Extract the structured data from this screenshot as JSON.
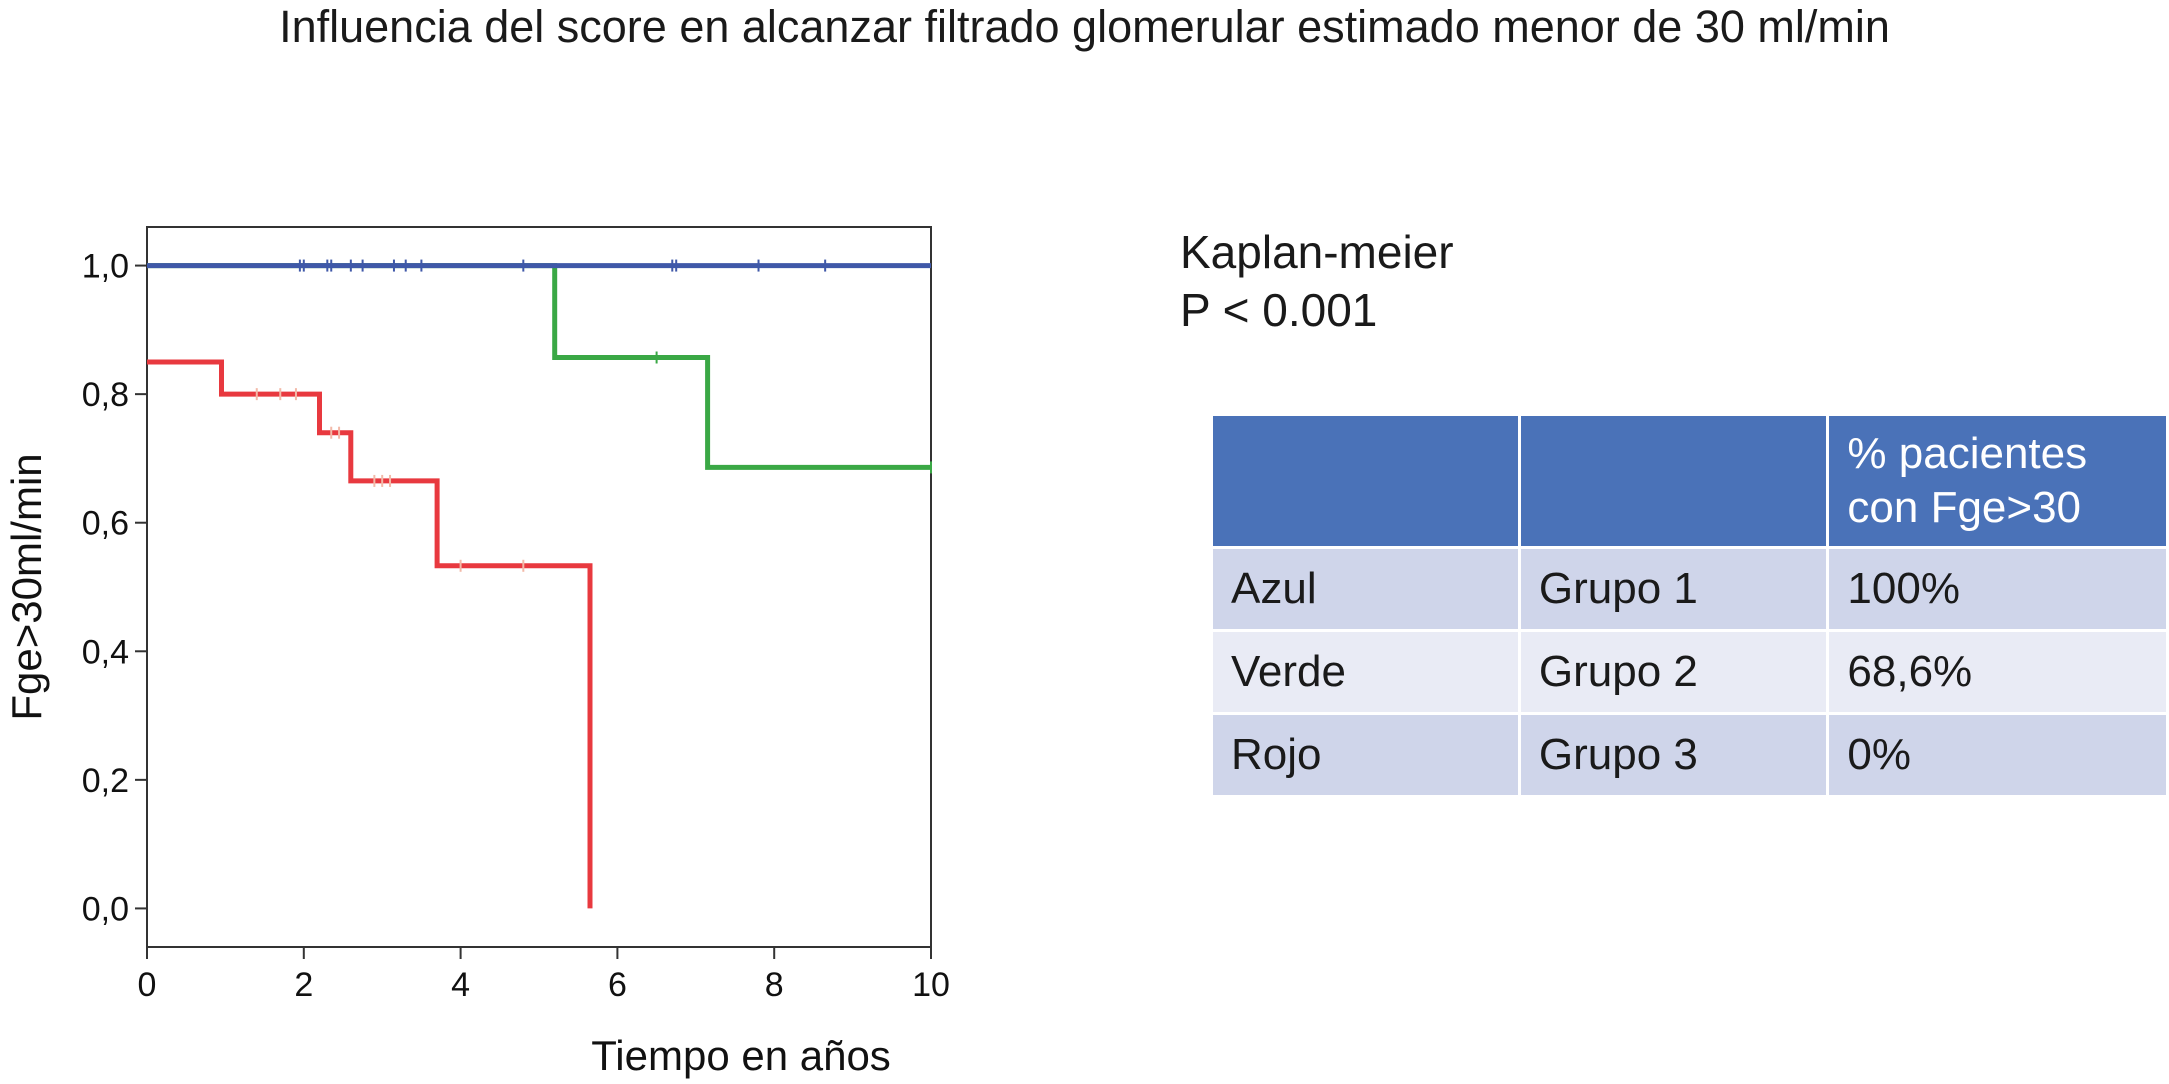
{
  "title": "Influencia del score en alcanzar filtrado glomerular estimado menor de 30 ml/min",
  "stats": {
    "method": "Kaplan-meier",
    "p_value": "P < 0.001"
  },
  "table": {
    "headers": [
      "",
      "",
      "% pacientes con Fge>30"
    ],
    "rows": [
      {
        "color": "Azul",
        "group": "Grupo 1",
        "pct": "100%"
      },
      {
        "color": "Verde",
        "group": "Grupo 2",
        "pct": "68,6%"
      },
      {
        "color": "Rojo",
        "group": "Grupo 3",
        "pct": "0%"
      }
    ]
  },
  "chart_data": {
    "type": "line",
    "subtype": "kaplan-meier step",
    "xlabel": "Tiempo en años",
    "ylabel": "Fge>30ml/min",
    "xlim": [
      0,
      10
    ],
    "ylim": [
      -0.06,
      1.06
    ],
    "xticks": [
      0,
      2,
      4,
      6,
      8,
      10
    ],
    "xtick_labels": [
      "0",
      "2",
      "4",
      "6",
      "8",
      "10"
    ],
    "yticks": [
      0,
      0.2,
      0.4,
      0.6,
      0.8,
      1.0
    ],
    "ytick_labels": [
      "0,0",
      "0,2",
      "0,4",
      "0,6",
      "0,8",
      "1,0"
    ],
    "grid": false,
    "series": [
      {
        "key": "azul",
        "color": "#3f58a8",
        "points": [
          [
            0,
            1.0
          ],
          [
            10,
            1.0
          ]
        ],
        "censored": [
          1.95,
          2.0,
          2.3,
          2.35,
          2.6,
          2.75,
          3.15,
          3.3,
          3.5,
          4.8,
          6.7,
          6.75,
          7.8,
          8.65
        ]
      },
      {
        "key": "verde",
        "color": "#3aa845",
        "points": [
          [
            0,
            1.0
          ],
          [
            5.2,
            1.0
          ],
          [
            5.2,
            0.857
          ],
          [
            7.15,
            0.857
          ],
          [
            7.15,
            0.686
          ],
          [
            10,
            0.686
          ]
        ],
        "censored": [
          6.5,
          10.0
        ]
      },
      {
        "key": "rojo",
        "color": "#e8393f",
        "points": [
          [
            0,
            0.85
          ],
          [
            0.95,
            0.85
          ],
          [
            0.95,
            0.8
          ],
          [
            2.2,
            0.8
          ],
          [
            2.2,
            0.74
          ],
          [
            2.6,
            0.74
          ],
          [
            2.6,
            0.665
          ],
          [
            3.7,
            0.665
          ],
          [
            3.7,
            0.533
          ],
          [
            5.65,
            0.533
          ],
          [
            5.65,
            0.0
          ]
        ],
        "censored": [
          1.4,
          1.7,
          1.9,
          2.35,
          2.45,
          2.9,
          3.0,
          3.1,
          4.0,
          4.8
        ]
      }
    ]
  }
}
